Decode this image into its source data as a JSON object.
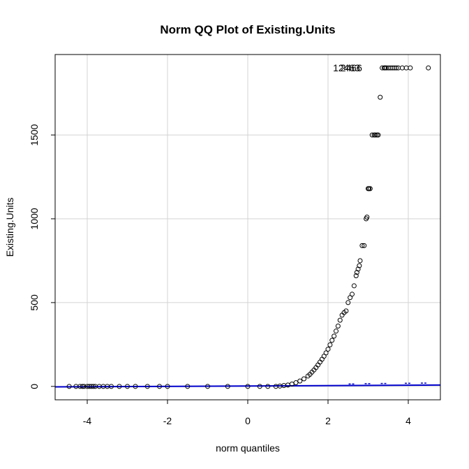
{
  "chart_data": {
    "type": "scatter",
    "title": "Norm QQ Plot of Existing.Units",
    "xlabel": "norm quantiles",
    "ylabel": "Existing.Units",
    "xlim": [
      -4.8,
      4.8
    ],
    "ylim": [
      -80,
      1980
    ],
    "x_ticks": [
      -4,
      -2,
      0,
      2,
      4
    ],
    "y_ticks": [
      0,
      500,
      1000,
      1500
    ],
    "grid": true,
    "point_style": "open circle",
    "series": [
      {
        "x": [
          -4.45,
          -4.28,
          -4.18,
          -4.12,
          -4.08,
          -4.0,
          -3.95,
          -3.9,
          -3.85,
          -3.8,
          -3.7,
          -3.6,
          -3.5,
          -3.4,
          -3.2,
          -3.0,
          -2.8,
          -2.5,
          -2.2,
          -2.0,
          -1.5,
          -1.0,
          -0.5,
          0.0,
          0.3,
          0.5,
          0.7,
          0.8,
          0.9,
          1.0,
          1.1,
          1.2,
          1.3,
          1.4,
          1.5,
          1.55,
          1.6,
          1.65,
          1.7,
          1.75,
          1.8,
          1.85,
          1.9,
          1.95,
          2.0,
          2.05,
          2.1,
          2.15,
          2.2,
          2.25,
          2.3,
          2.35,
          2.4,
          2.45,
          2.5,
          2.55,
          2.6,
          2.65,
          2.7,
          2.72,
          2.75,
          2.78,
          2.8,
          2.85,
          2.9,
          2.95,
          2.97,
          3.0,
          3.02,
          3.05,
          3.1,
          3.15,
          3.18,
          3.22,
          3.25,
          3.3,
          3.35,
          3.4,
          3.42,
          3.45,
          3.5,
          3.55,
          3.6,
          3.65,
          3.7,
          3.75,
          3.85,
          3.95,
          4.05,
          4.5
        ],
        "y": [
          0,
          0,
          0,
          0,
          0,
          0,
          0,
          0,
          0,
          0,
          0,
          0,
          0,
          0,
          0,
          0,
          0,
          0,
          0,
          0,
          0,
          0,
          0,
          0,
          0,
          0,
          0,
          2,
          5,
          8,
          14,
          22,
          32,
          45,
          62,
          72,
          85,
          98,
          112,
          128,
          145,
          162,
          180,
          200,
          222,
          248,
          275,
          300,
          330,
          360,
          395,
          425,
          440,
          450,
          500,
          530,
          550,
          600,
          660,
          680,
          700,
          720,
          750,
          840,
          840,
          1000,
          1010,
          1180,
          1180,
          1180,
          1500,
          1500,
          1500,
          1500,
          1500,
          1725,
          1900,
          1900,
          1900,
          1900,
          1900,
          1900,
          1900,
          1900,
          1900,
          1900,
          1900,
          1900,
          1900,
          1900
        ]
      }
    ],
    "reference_line": {
      "color": "#0000cc",
      "x": [
        -4.8,
        4.8
      ],
      "y": [
        -3,
        8
      ]
    },
    "reference_band_marks": [
      {
        "x": 2.6,
        "y": 6
      },
      {
        "x": 3.0,
        "y": 8
      },
      {
        "x": 3.4,
        "y": 9
      },
      {
        "x": 4.0,
        "y": 10
      },
      {
        "x": 4.4,
        "y": 11
      }
    ],
    "point_labels": [
      {
        "text": "12463",
        "x": 2.8,
        "y": 1900
      },
      {
        "text": "2466",
        "x": 2.85,
        "y": 1900
      }
    ],
    "colors": {
      "points": "#000000",
      "reference_line": "#0000cc",
      "grid": "#d3d3d3"
    }
  }
}
